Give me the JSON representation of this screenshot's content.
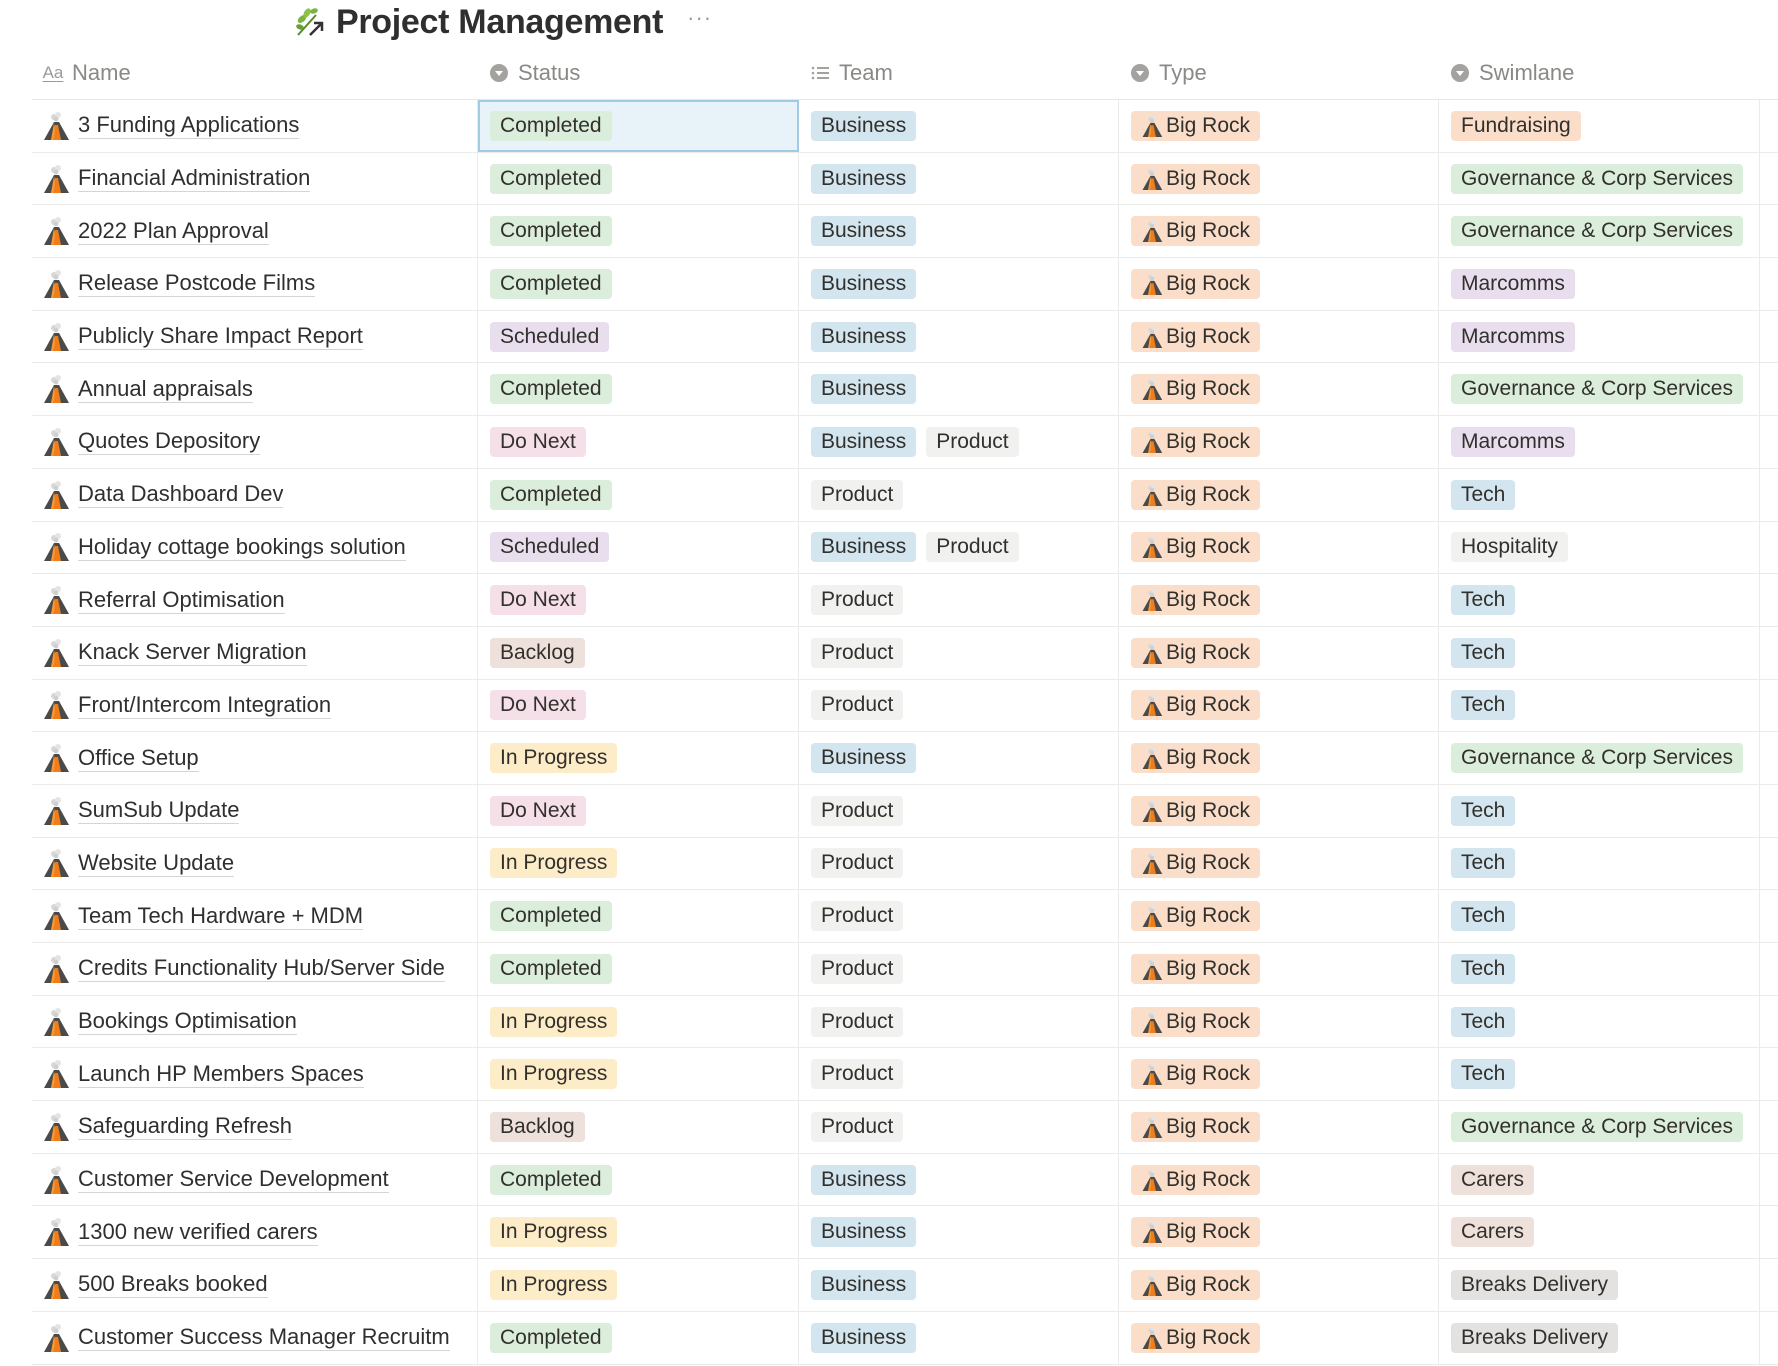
{
  "page": {
    "title": "Project Management",
    "title_icon": "herb-arrow-icon",
    "more_label": "···"
  },
  "columns": [
    {
      "label": "Name",
      "icon": "title-aa-icon"
    },
    {
      "label": "Status",
      "icon": "select-chevron-icon"
    },
    {
      "label": "Team",
      "icon": "multi-select-list-icon"
    },
    {
      "label": "Type",
      "icon": "select-chevron-icon"
    },
    {
      "label": "Swimlane",
      "icon": "select-chevron-icon"
    }
  ],
  "colors": {
    "Completed": "#dbeddb",
    "Scheduled": "#e8deee",
    "Do Next": "#f5e0e9",
    "Backlog": "#eee0da",
    "In Progress": "#fdecc8",
    "Business": "#d3e5ef",
    "Product": "#f1f1ef",
    "Big Rock": "#fadec9",
    "Fundraising": "#fadec9",
    "Governance & Corp Services": "#dbeddb",
    "Marcomms": "#e8deee",
    "Tech": "#d3e5ef",
    "Hospitality": "#f1f1ef",
    "Carers": "#eee0da",
    "Breaks Delivery": "#e3e2e0"
  },
  "rows": [
    {
      "name": "3 Funding Applications",
      "status": "Completed",
      "team": [
        "Business"
      ],
      "type": "Big Rock",
      "swimlane": "Fundraising"
    },
    {
      "name": "Financial Administration",
      "status": "Completed",
      "team": [
        "Business"
      ],
      "type": "Big Rock",
      "swimlane": "Governance & Corp Services"
    },
    {
      "name": "2022 Plan Approval",
      "status": "Completed",
      "team": [
        "Business"
      ],
      "type": "Big Rock",
      "swimlane": "Governance & Corp Services"
    },
    {
      "name": "Release Postcode Films",
      "status": "Completed",
      "team": [
        "Business"
      ],
      "type": "Big Rock",
      "swimlane": "Marcomms"
    },
    {
      "name": "Publicly Share Impact Report",
      "status": "Scheduled",
      "team": [
        "Business"
      ],
      "type": "Big Rock",
      "swimlane": "Marcomms"
    },
    {
      "name": "Annual appraisals",
      "status": "Completed",
      "team": [
        "Business"
      ],
      "type": "Big Rock",
      "swimlane": "Governance & Corp Services"
    },
    {
      "name": "Quotes Depository",
      "status": "Do Next",
      "team": [
        "Business",
        "Product"
      ],
      "type": "Big Rock",
      "swimlane": "Marcomms"
    },
    {
      "name": "Data Dashboard Dev",
      "status": "Completed",
      "team": [
        "Product"
      ],
      "type": "Big Rock",
      "swimlane": "Tech"
    },
    {
      "name": "Holiday cottage bookings solution",
      "status": "Scheduled",
      "team": [
        "Business",
        "Product"
      ],
      "type": "Big Rock",
      "swimlane": "Hospitality"
    },
    {
      "name": "Referral Optimisation",
      "status": "Do Next",
      "team": [
        "Product"
      ],
      "type": "Big Rock",
      "swimlane": "Tech"
    },
    {
      "name": "Knack Server Migration",
      "status": "Backlog",
      "team": [
        "Product"
      ],
      "type": "Big Rock",
      "swimlane": "Tech"
    },
    {
      "name": "Front/Intercom Integration",
      "status": "Do Next",
      "team": [
        "Product"
      ],
      "type": "Big Rock",
      "swimlane": "Tech"
    },
    {
      "name": "Office Setup",
      "status": "In Progress",
      "team": [
        "Business"
      ],
      "type": "Big Rock",
      "swimlane": "Governance & Corp Services"
    },
    {
      "name": "SumSub Update",
      "status": "Do Next",
      "team": [
        "Product"
      ],
      "type": "Big Rock",
      "swimlane": "Tech"
    },
    {
      "name": "Website Update",
      "status": "In Progress",
      "team": [
        "Product"
      ],
      "type": "Big Rock",
      "swimlane": "Tech"
    },
    {
      "name": "Team Tech Hardware + MDM",
      "status": "Completed",
      "team": [
        "Product"
      ],
      "type": "Big Rock",
      "swimlane": "Tech"
    },
    {
      "name": "Credits Functionality Hub/Server Side",
      "status": "Completed",
      "team": [
        "Product"
      ],
      "type": "Big Rock",
      "swimlane": "Tech"
    },
    {
      "name": "Bookings Optimisation",
      "status": "In Progress",
      "team": [
        "Product"
      ],
      "type": "Big Rock",
      "swimlane": "Tech"
    },
    {
      "name": "Launch HP Members Spaces",
      "status": "In Progress",
      "team": [
        "Product"
      ],
      "type": "Big Rock",
      "swimlane": "Tech"
    },
    {
      "name": "Safeguarding Refresh",
      "status": "Backlog",
      "team": [
        "Product"
      ],
      "type": "Big Rock",
      "swimlane": "Governance & Corp Services"
    },
    {
      "name": "Customer Service Development",
      "status": "Completed",
      "team": [
        "Business"
      ],
      "type": "Big Rock",
      "swimlane": "Carers"
    },
    {
      "name": "1300 new verified carers",
      "status": "In Progress",
      "team": [
        "Business"
      ],
      "type": "Big Rock",
      "swimlane": "Carers"
    },
    {
      "name": "500 Breaks booked",
      "status": "In Progress",
      "team": [
        "Business"
      ],
      "type": "Big Rock",
      "swimlane": "Breaks Delivery"
    },
    {
      "name": "Customer Success Manager Recruitm",
      "status": "Completed",
      "team": [
        "Business"
      ],
      "type": "Big Rock",
      "swimlane": "Breaks Delivery"
    }
  ],
  "selected_cell": {
    "row": 0,
    "column": "status"
  }
}
